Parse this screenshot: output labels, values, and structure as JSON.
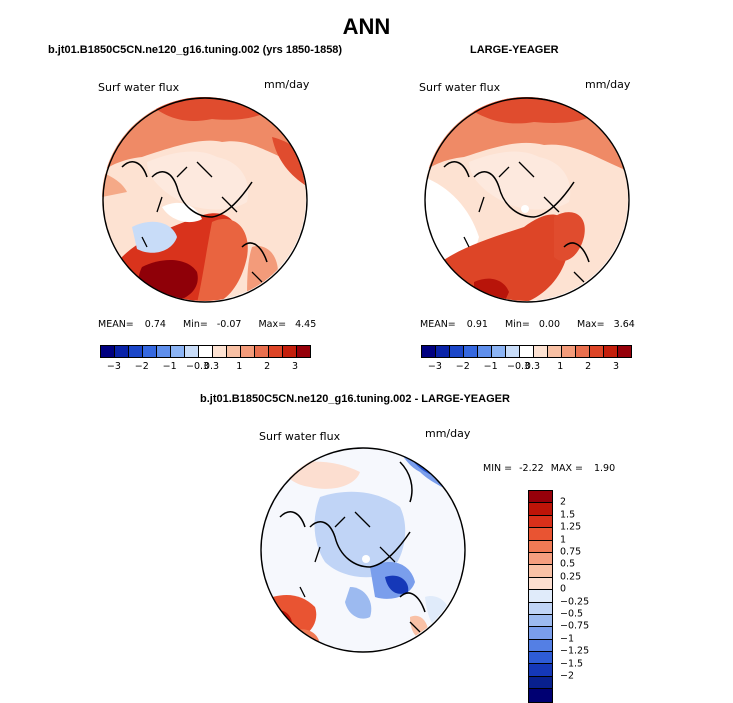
{
  "title": "ANN",
  "panel1": {
    "subtitle": "b.jt01.B1850C5CN.ne120_g16.tuning.002 (yrs 1850-1858)",
    "variable": "Surf water flux",
    "units": "mm/day",
    "mean_label": "MEAN=",
    "mean": "0.74",
    "min_label": "Min=",
    "min": "-0.07",
    "max_label": "Max=",
    "max": "4.45"
  },
  "panel2": {
    "subtitle": "LARGE-YEAGER",
    "variable": "Surf water flux",
    "units": "mm/day",
    "mean_label": "MEAN=",
    "mean": "0.91",
    "min_label": "Min=",
    "min": "0.00",
    "max_label": "Max=",
    "max": "3.64"
  },
  "panel3": {
    "subtitle": "b.jt01.B1850C5CN.ne120_g16.tuning.002 - LARGE-YEAGER",
    "variable": "Surf water flux",
    "units": "mm/day",
    "min_label": "MIN =",
    "min": "-2.22",
    "max_label": "MAX =",
    "max": "1.90"
  },
  "colorbar_main": {
    "colors": [
      "#000080",
      "#0a23a8",
      "#1b46c8",
      "#3568e0",
      "#5f8fec",
      "#8cb4f4",
      "#c8dcf8",
      "#ffffff",
      "#fde2d2",
      "#f8c0a4",
      "#f39b7a",
      "#e96f4e",
      "#dd4527",
      "#c41f0c",
      "#96000a"
    ],
    "tick_labels": [
      "−3",
      "−2",
      "−1",
      "−0.3",
      "0.3",
      "1",
      "2",
      "3"
    ]
  },
  "colorbar_diff": {
    "colors": [
      "#96000a",
      "#be1408",
      "#d9301a",
      "#e95432",
      "#f07a55",
      "#f59e7f",
      "#f9c1a6",
      "#fcded0",
      "#e0ebfa",
      "#c0d4f6",
      "#9cbaf0",
      "#7a9eec",
      "#547fe4",
      "#2e5cd6",
      "#1538b8",
      "#08208e",
      "#000072"
    ],
    "labels": [
      "2",
      "1.5",
      "1.25",
      "1",
      "0.75",
      "0.5",
      "0.25",
      "0",
      "−0.25",
      "−0.5",
      "−0.75",
      "−1",
      "−1.25",
      "−1.5",
      "−2"
    ]
  },
  "icons": [
    "map-polar-projection"
  ]
}
